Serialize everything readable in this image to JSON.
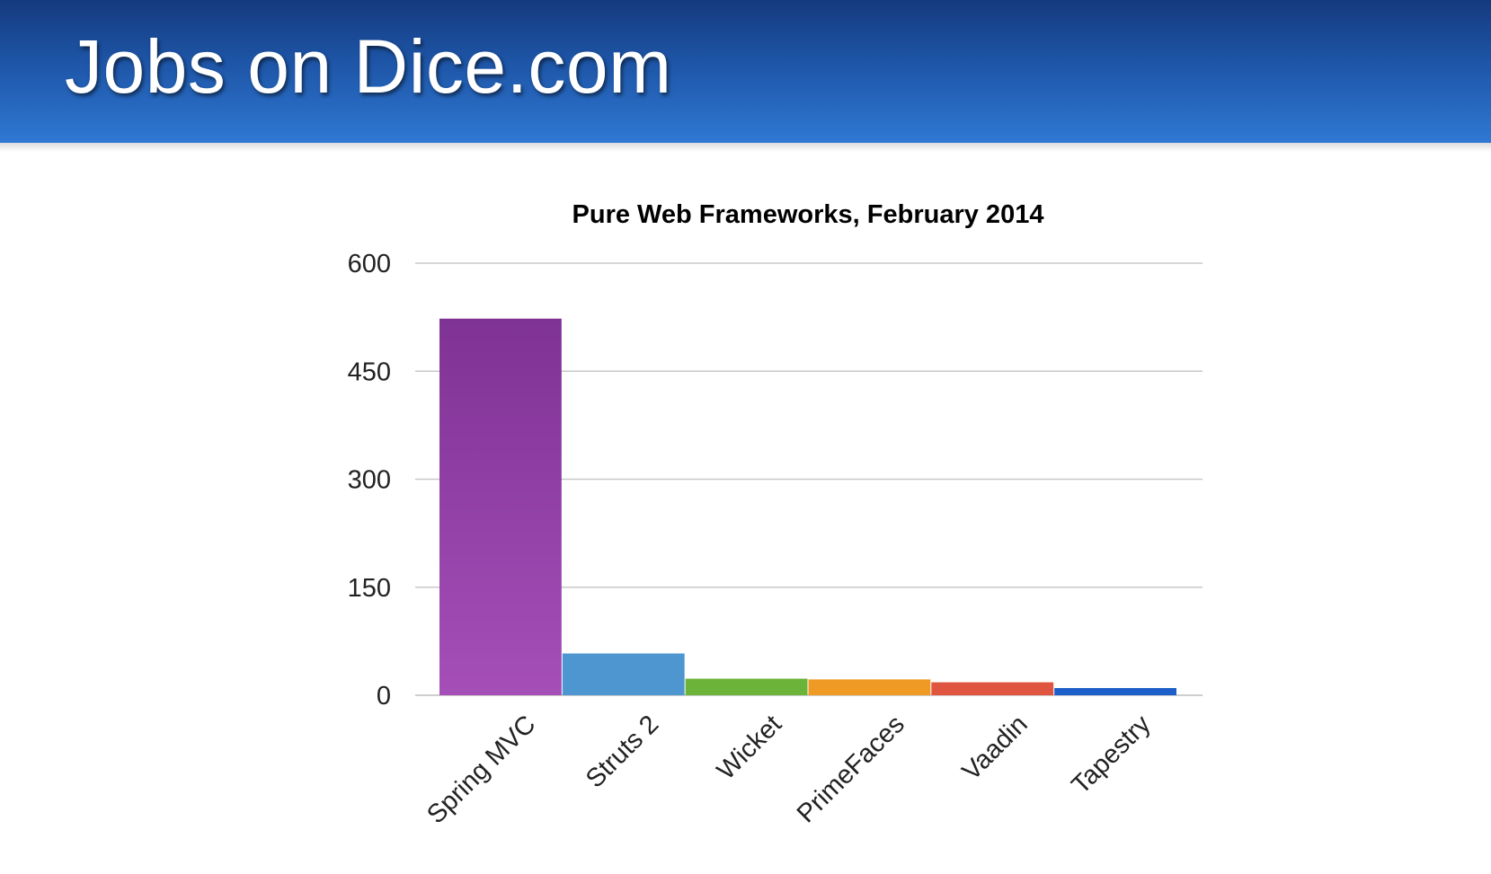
{
  "header": {
    "title": "Jobs on Dice.com",
    "background_color": "#1e56a8"
  },
  "chart_data": {
    "type": "bar",
    "title": "Pure Web Frameworks, February 2014",
    "xlabel": "",
    "ylabel": "",
    "categories": [
      "Spring MVC",
      "Struts 2",
      "Wicket",
      "PrimeFaces",
      "Vaadin",
      "Tapestry"
    ],
    "values": [
      523,
      58,
      23,
      22,
      18,
      10
    ],
    "colors": [
      "#8e3fa6",
      "#4d96cf",
      "#6cb33a",
      "#ef9a24",
      "#e0553f",
      "#1d5fc9"
    ],
    "ylim": [
      0,
      600
    ],
    "yticks": [
      0,
      150,
      300,
      450,
      600
    ],
    "grid": true,
    "legend": "none"
  }
}
